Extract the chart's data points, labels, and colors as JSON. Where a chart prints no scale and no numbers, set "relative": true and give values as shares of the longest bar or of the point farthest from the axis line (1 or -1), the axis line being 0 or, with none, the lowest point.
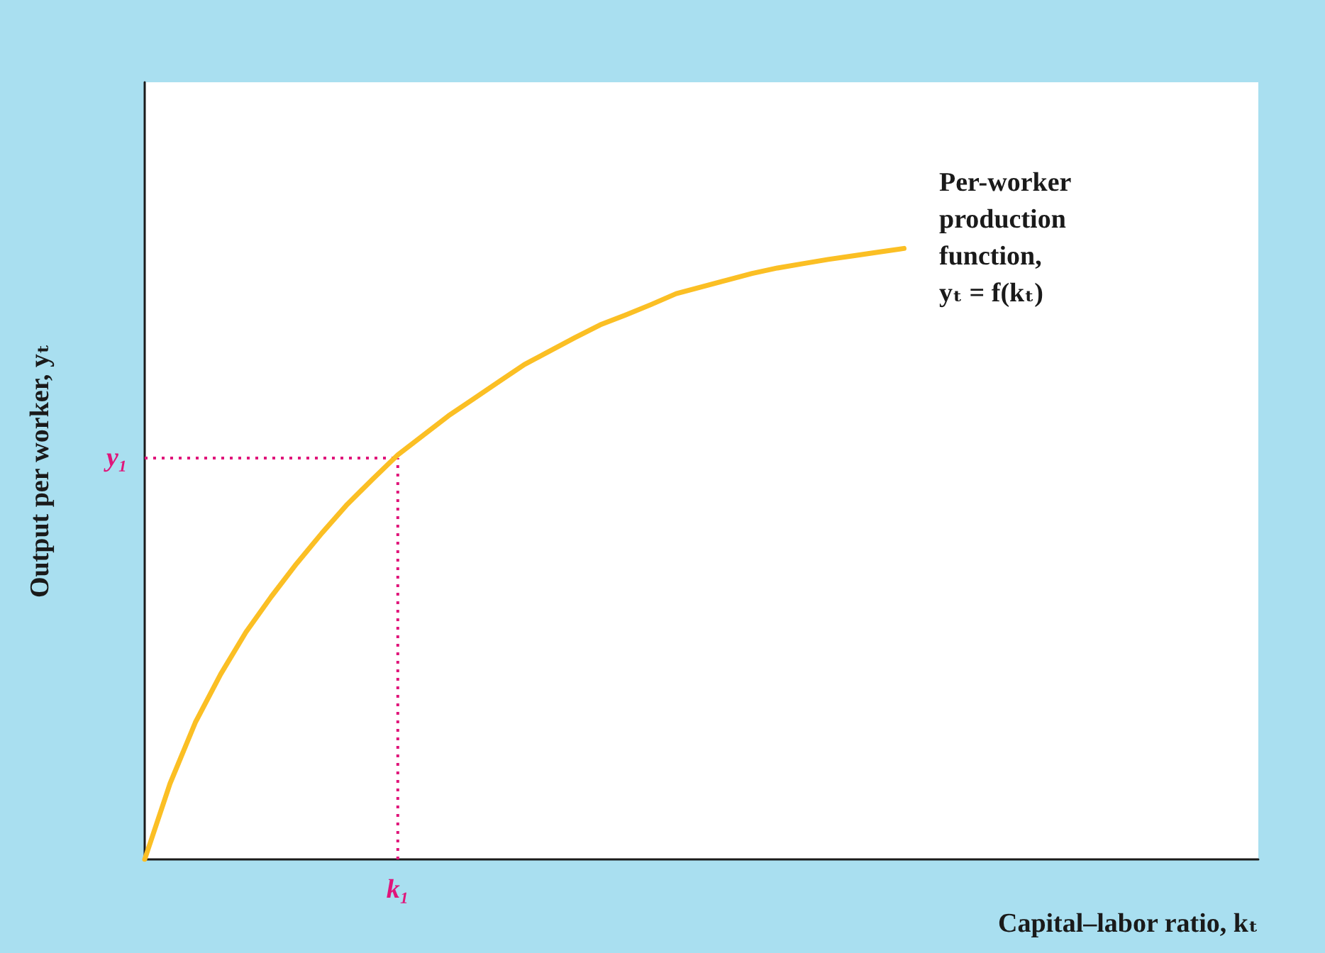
{
  "chart_data": {
    "type": "line",
    "relative": true,
    "xlabel": "Capital–labor ratio, kₜ",
    "ylabel": "Output per worker, yₜ",
    "categories": [
      null,
      null,
      null,
      null,
      null,
      null,
      null,
      null,
      null,
      null,
      null,
      null,
      null,
      null,
      null,
      null,
      null,
      null,
      null,
      null,
      null,
      null,
      null,
      null,
      null,
      null,
      null,
      null,
      null,
      null,
      null,
      null,
      null,
      null,
      null,
      null,
      null,
      null,
      null,
      null,
      null,
      null,
      null,
      null,
      null
    ],
    "series": [
      {
        "color": "#fbbf24",
        "values": [
          0,
          0.124,
          0.224,
          0.303,
          0.372,
          0.43,
          0.484,
          0.534,
          0.581,
          0.622,
          0.662,
          0.694,
          0.726,
          0.754,
          0.782,
          0.81,
          0.832,
          0.854,
          0.875,
          0.891,
          0.908,
          0.926,
          0.937,
          0.948,
          0.959,
          0.968,
          0.975,
          0.982,
          0.988,
          0.994,
          1,
          null,
          null,
          null,
          null,
          null,
          null,
          null,
          null,
          null,
          null,
          null,
          null,
          null,
          null
        ]
      }
    ],
    "ref_lines": [
      {
        "axis": "y",
        "value": 0.657,
        "label": "y₁",
        "color": "#e0157a",
        "line_style": "dotted"
      }
    ],
    "annotations": [
      "k₁",
      "Per-worker production function, yₜ = f(kₜ)"
    ],
    "marker": "none",
    "grid": false
  }
}
